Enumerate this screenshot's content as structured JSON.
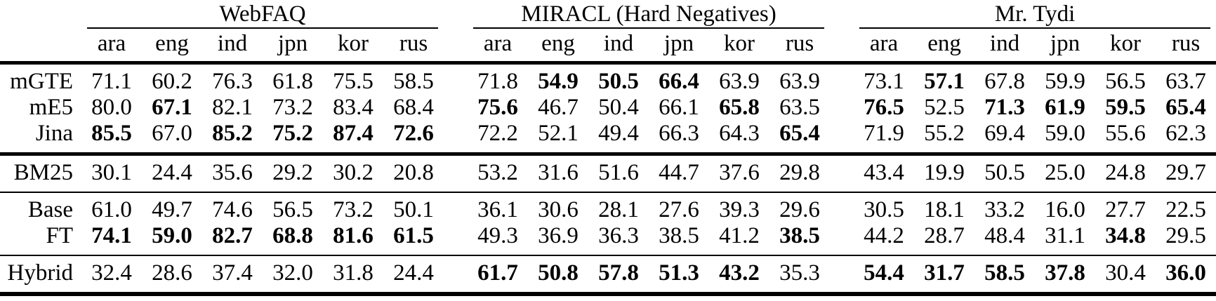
{
  "colors": {
    "background": "#ffffff",
    "text": "#000000",
    "rule": "#000000"
  },
  "table": {
    "corner_label": "",
    "groups": [
      {
        "title": "WebFAQ",
        "langs": [
          "ara",
          "eng",
          "ind",
          "jpn",
          "kor",
          "rus"
        ]
      },
      {
        "title": "MIRACL (Hard Negatives)",
        "langs": [
          "ara",
          "eng",
          "ind",
          "jpn",
          "kor",
          "rus"
        ]
      },
      {
        "title": "Mr. Tydi",
        "langs": [
          "ara",
          "eng",
          "ind",
          "jpn",
          "kor",
          "rus"
        ]
      }
    ],
    "sections": [
      {
        "name": "multilingual-dense-retrievers",
        "rows": [
          {
            "label": "mGTE",
            "values": [
              "71.1",
              "60.2",
              "76.3",
              "61.8",
              "75.5",
              "58.5",
              "71.8",
              "54.9",
              "50.5",
              "66.4",
              "63.9",
              "63.9",
              "73.1",
              "57.1",
              "67.8",
              "59.9",
              "56.5",
              "63.7"
            ],
            "bold": [
              false,
              false,
              false,
              false,
              false,
              false,
              false,
              true,
              true,
              true,
              false,
              false,
              false,
              true,
              false,
              false,
              false,
              false
            ]
          },
          {
            "label": "mE5",
            "values": [
              "80.0",
              "67.1",
              "82.1",
              "73.2",
              "83.4",
              "68.4",
              "75.6",
              "46.7",
              "50.4",
              "66.1",
              "65.8",
              "63.5",
              "76.5",
              "52.5",
              "71.3",
              "61.9",
              "59.5",
              "65.4"
            ],
            "bold": [
              false,
              true,
              false,
              false,
              false,
              false,
              true,
              false,
              false,
              false,
              true,
              false,
              true,
              false,
              true,
              true,
              true,
              true
            ]
          },
          {
            "label": "Jina",
            "values": [
              "85.5",
              "67.0",
              "85.2",
              "75.2",
              "87.4",
              "72.6",
              "72.2",
              "52.1",
              "49.4",
              "66.3",
              "64.3",
              "65.4",
              "71.9",
              "55.2",
              "69.4",
              "59.0",
              "55.6",
              "62.3"
            ],
            "bold": [
              true,
              false,
              true,
              true,
              true,
              true,
              false,
              false,
              false,
              false,
              false,
              true,
              false,
              false,
              false,
              false,
              false,
              false
            ]
          }
        ]
      },
      {
        "name": "bm25-baseline",
        "rows": [
          {
            "label": "BM25",
            "values": [
              "30.1",
              "24.4",
              "35.6",
              "29.2",
              "30.2",
              "20.8",
              "53.2",
              "31.6",
              "51.6",
              "44.7",
              "37.6",
              "29.8",
              "43.4",
              "19.9",
              "50.5",
              "25.0",
              "24.8",
              "29.7"
            ],
            "bold": [
              false,
              false,
              false,
              false,
              false,
              false,
              false,
              false,
              false,
              false,
              false,
              false,
              false,
              false,
              false,
              false,
              false,
              false
            ]
          }
        ]
      },
      {
        "name": "base-and-finetuned",
        "rows": [
          {
            "label": "Base",
            "values": [
              "61.0",
              "49.7",
              "74.6",
              "56.5",
              "73.2",
              "50.1",
              "36.1",
              "30.6",
              "28.1",
              "27.6",
              "39.3",
              "29.6",
              "30.5",
              "18.1",
              "33.2",
              "16.0",
              "27.7",
              "22.5"
            ],
            "bold": [
              false,
              false,
              false,
              false,
              false,
              false,
              false,
              false,
              false,
              false,
              false,
              false,
              false,
              false,
              false,
              false,
              false,
              false
            ]
          },
          {
            "label": "FT",
            "values": [
              "74.1",
              "59.0",
              "82.7",
              "68.8",
              "81.6",
              "61.5",
              "49.3",
              "36.9",
              "36.3",
              "38.5",
              "41.2",
              "38.5",
              "44.2",
              "28.7",
              "48.4",
              "31.1",
              "34.8",
              "29.5"
            ],
            "bold": [
              true,
              true,
              true,
              true,
              true,
              true,
              false,
              false,
              false,
              false,
              false,
              true,
              false,
              false,
              false,
              false,
              true,
              false
            ]
          }
        ]
      },
      {
        "name": "hybrid",
        "rows": [
          {
            "label": "Hybrid",
            "values": [
              "32.4",
              "28.6",
              "37.4",
              "32.0",
              "31.8",
              "24.4",
              "61.7",
              "50.8",
              "57.8",
              "51.3",
              "43.2",
              "35.3",
              "54.4",
              "31.7",
              "58.5",
              "37.8",
              "30.4",
              "36.0"
            ],
            "bold": [
              false,
              false,
              false,
              false,
              false,
              false,
              true,
              true,
              true,
              true,
              true,
              false,
              true,
              true,
              true,
              true,
              false,
              true
            ]
          }
        ]
      }
    ]
  }
}
